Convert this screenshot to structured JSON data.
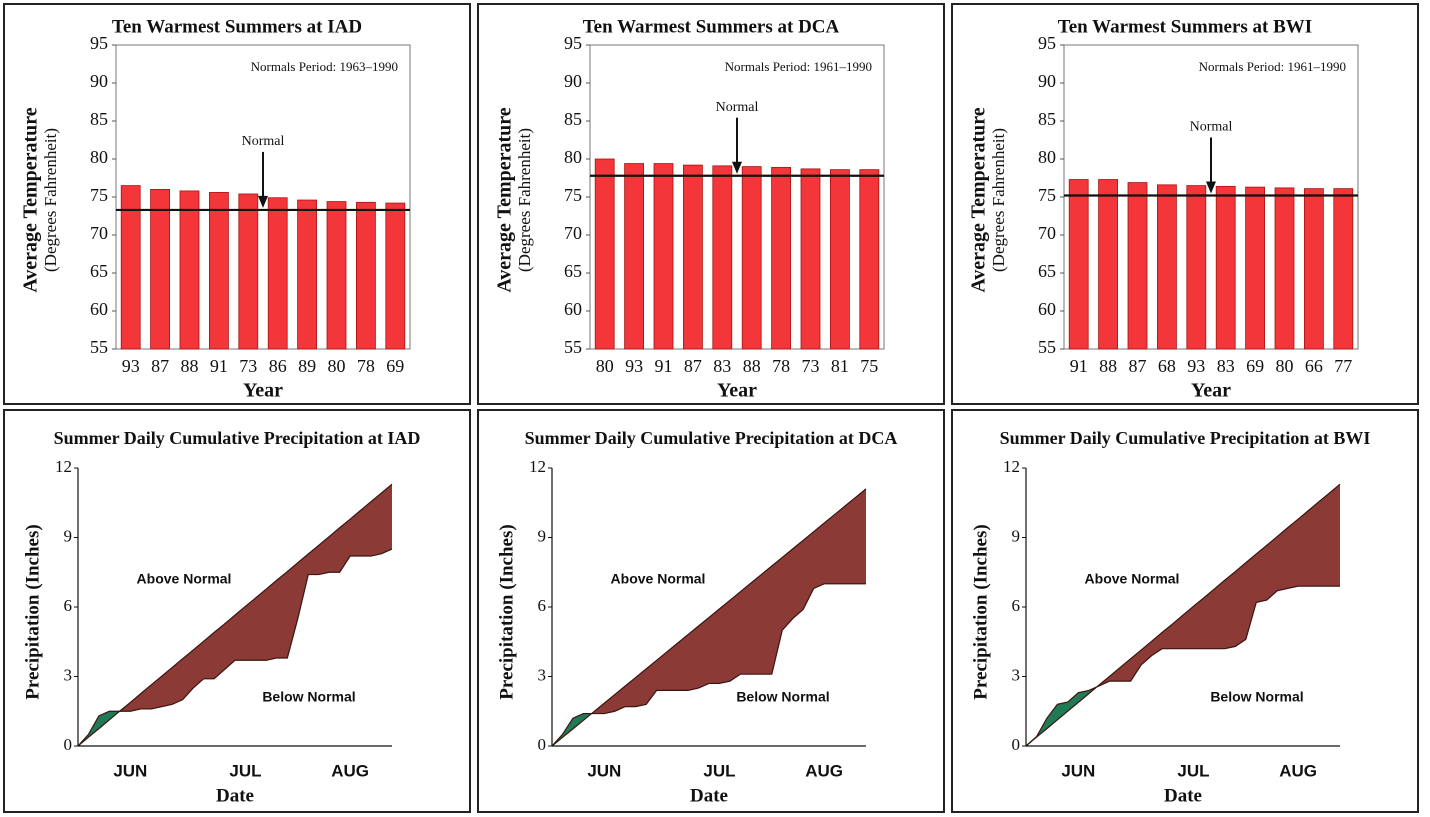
{
  "chart_data": [
    {
      "type": "bar",
      "title": "Ten Warmest Summers at IAD",
      "note": "Normals Period: 1963–1990",
      "normal_label": "Normal",
      "normal": 73.3,
      "y_label": "Average Temperature",
      "y_sublabel": "(Degrees Fahrenheit)",
      "x_label": "Year",
      "categories": [
        "93",
        "87",
        "88",
        "91",
        "73",
        "86",
        "89",
        "80",
        "78",
        "69"
      ],
      "values": [
        76.5,
        76.0,
        75.8,
        75.6,
        75.4,
        74.9,
        74.6,
        74.4,
        74.3,
        74.2
      ],
      "color": "#f2363a",
      "ylim": [
        55,
        95
      ],
      "yticks": [
        55,
        60,
        65,
        70,
        75,
        80,
        85,
        90,
        95
      ]
    },
    {
      "type": "bar",
      "title": "Ten Warmest Summers at DCA",
      "note": "Normals Period: 1961–1990",
      "normal_label": "Normal",
      "normal": 77.8,
      "y_label": "Average Temperature",
      "y_sublabel": "(Degrees Fahrenheit)",
      "x_label": "Year",
      "categories": [
        "80",
        "93",
        "91",
        "87",
        "83",
        "88",
        "78",
        "73",
        "81",
        "75"
      ],
      "values": [
        80.0,
        79.4,
        79.4,
        79.2,
        79.1,
        79.0,
        78.9,
        78.7,
        78.6,
        78.6
      ],
      "color": "#f2363a",
      "ylim": [
        55,
        95
      ],
      "yticks": [
        55,
        60,
        65,
        70,
        75,
        80,
        85,
        90,
        95
      ]
    },
    {
      "type": "bar",
      "title": "Ten Warmest Summers at BWI",
      "note": "Normals Period: 1961–1990",
      "normal_label": "Normal",
      "normal": 75.2,
      "y_label": "Average Temperature",
      "y_sublabel": "(Degrees Fahrenheit)",
      "x_label": "Year",
      "categories": [
        "91",
        "88",
        "87",
        "68",
        "93",
        "83",
        "69",
        "80",
        "66",
        "77"
      ],
      "values": [
        77.3,
        77.3,
        76.9,
        76.6,
        76.5,
        76.4,
        76.3,
        76.2,
        76.1,
        76.1
      ],
      "color": "#f2363a",
      "ylim": [
        55,
        95
      ],
      "yticks": [
        55,
        60,
        65,
        70,
        75,
        80,
        85,
        90,
        95
      ]
    },
    {
      "type": "area",
      "title": "Summer Daily Cumulative Precipitation at IAD",
      "y_label": "Precipitation (Inches)",
      "x_label": "Date",
      "annotations": [
        "Above Normal",
        "Below Normal"
      ],
      "above_color": "#8b3a36",
      "below_color": "#1f7a55",
      "categories": [
        null,
        null,
        null,
        null,
        null,
        "JUN",
        null,
        null,
        null,
        null,
        null,
        null,
        null,
        null,
        null,
        null,
        "JUL",
        null,
        null,
        null,
        null,
        null,
        null,
        null,
        null,
        null,
        "AUG",
        null,
        null,
        null,
        null
      ],
      "series": [
        {
          "values": [
            0,
            0.38,
            0.75,
            1.13,
            1.51,
            1.88,
            2.26,
            2.64,
            3.01,
            3.39,
            3.77,
            4.14,
            4.52,
            4.9,
            5.27,
            5.65,
            6.03,
            6.4,
            6.78,
            7.16,
            7.53,
            7.91,
            8.29,
            8.66,
            9.04,
            9.42,
            9.79,
            10.17,
            10.55,
            10.92,
            11.3
          ]
        },
        {
          "values": [
            0,
            0.5,
            1.3,
            1.5,
            1.5,
            1.5,
            1.6,
            1.6,
            1.7,
            1.8,
            2.0,
            2.5,
            2.9,
            2.9,
            3.3,
            3.7,
            3.7,
            3.7,
            3.7,
            3.8,
            3.8,
            5.5,
            7.4,
            7.4,
            7.5,
            7.5,
            8.2,
            8.2,
            8.2,
            8.3,
            8.5
          ]
        }
      ],
      "ylim": [
        0,
        12
      ],
      "yticks": [
        0,
        3,
        6,
        9,
        12
      ]
    },
    {
      "type": "area",
      "title": "Summer Daily Cumulative Precipitation at DCA",
      "y_label": "Precipitation (Inches)",
      "x_label": "Date",
      "annotations": [
        "Above Normal",
        "Below Normal"
      ],
      "above_color": "#8b3a36",
      "below_color": "#1f7a55",
      "categories": [
        null,
        null,
        null,
        null,
        null,
        "JUN",
        null,
        null,
        null,
        null,
        null,
        null,
        null,
        null,
        null,
        null,
        "JUL",
        null,
        null,
        null,
        null,
        null,
        null,
        null,
        null,
        null,
        "AUG",
        null,
        null,
        null,
        null
      ],
      "series": [
        {
          "values": [
            0,
            0.37,
            0.74,
            1.11,
            1.48,
            1.85,
            2.22,
            2.59,
            2.96,
            3.33,
            3.7,
            4.07,
            4.44,
            4.81,
            5.18,
            5.55,
            5.92,
            6.29,
            6.66,
            7.03,
            7.4,
            7.77,
            8.14,
            8.51,
            8.88,
            9.25,
            9.62,
            9.99,
            10.36,
            10.73,
            11.1
          ]
        },
        {
          "values": [
            0,
            0.5,
            1.2,
            1.4,
            1.4,
            1.4,
            1.5,
            1.7,
            1.7,
            1.8,
            2.4,
            2.4,
            2.4,
            2.4,
            2.5,
            2.7,
            2.7,
            2.8,
            3.1,
            3.1,
            3.1,
            3.1,
            5.0,
            5.5,
            5.9,
            6.8,
            7.0,
            7.0,
            7.0,
            7.0,
            7.0
          ]
        }
      ],
      "ylim": [
        0,
        12
      ],
      "yticks": [
        0,
        3,
        6,
        9,
        12
      ]
    },
    {
      "type": "area",
      "title": "Summer Daily Cumulative Precipitation at BWI",
      "y_label": "Precipitation (Inches)",
      "x_label": "Date",
      "annotations": [
        "Above Normal",
        "Below Normal"
      ],
      "above_color": "#8b3a36",
      "below_color": "#1f7a55",
      "categories": [
        null,
        null,
        null,
        null,
        null,
        "JUN",
        null,
        null,
        null,
        null,
        null,
        null,
        null,
        null,
        null,
        null,
        "JUL",
        null,
        null,
        null,
        null,
        null,
        null,
        null,
        null,
        null,
        "AUG",
        null,
        null,
        null,
        null
      ],
      "series": [
        {
          "values": [
            0,
            0.38,
            0.75,
            1.13,
            1.51,
            1.88,
            2.26,
            2.64,
            3.01,
            3.39,
            3.77,
            4.14,
            4.52,
            4.9,
            5.27,
            5.65,
            6.03,
            6.4,
            6.78,
            7.16,
            7.53,
            7.91,
            8.29,
            8.66,
            9.04,
            9.42,
            9.79,
            10.17,
            10.55,
            10.92,
            11.3
          ]
        },
        {
          "values": [
            0,
            0.4,
            1.2,
            1.8,
            1.9,
            2.3,
            2.4,
            2.6,
            2.8,
            2.8,
            2.8,
            3.5,
            3.9,
            4.2,
            4.2,
            4.2,
            4.2,
            4.2,
            4.2,
            4.2,
            4.3,
            4.6,
            6.2,
            6.3,
            6.7,
            6.8,
            6.9,
            6.9,
            6.9,
            6.9,
            6.9
          ]
        }
      ],
      "ylim": [
        0,
        12
      ],
      "yticks": [
        0,
        3,
        6,
        9,
        12
      ]
    }
  ]
}
